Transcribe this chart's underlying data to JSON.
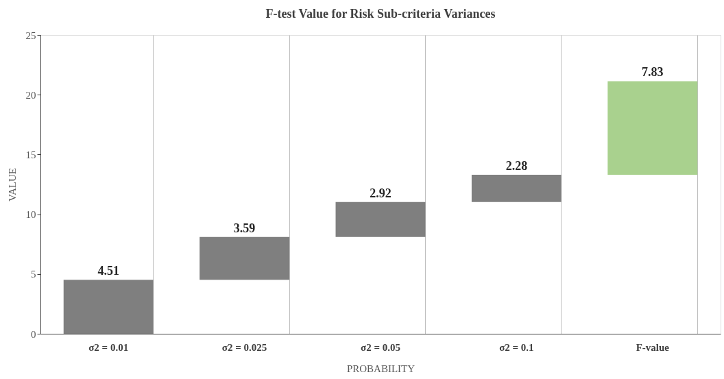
{
  "chart_data": {
    "type": "bar",
    "title": "F-test Value for Risk Sub-criteria Variances",
    "xlabel": "PROBABILITY",
    "ylabel": "VALUE",
    "categories": [
      "σ2 = 0.01",
      "σ2 = 0.025",
      "σ2 = 0.05",
      "σ2 = 0.1",
      "F-value"
    ],
    "values": [
      4.51,
      3.59,
      2.92,
      2.28,
      7.83
    ],
    "base": [
      0,
      4.51,
      8.1,
      11.02,
      13.3
    ],
    "colors": [
      "#7f7f7f",
      "#7f7f7f",
      "#7f7f7f",
      "#7f7f7f",
      "#a9d18e"
    ],
    "data_labels": true,
    "ylim": [
      0,
      25
    ],
    "yticks": [
      0,
      5,
      10,
      15,
      20,
      25
    ],
    "grid": "x"
  }
}
